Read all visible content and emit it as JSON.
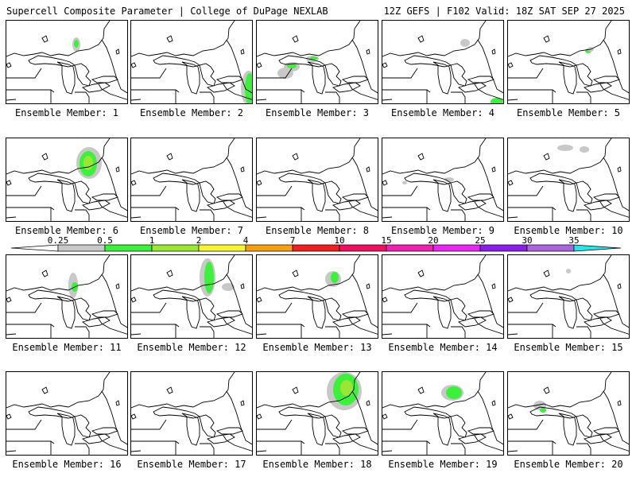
{
  "header": {
    "left": "Supercell Composite Parameter | College of DuPage NEXLAB",
    "right": "12Z GEFS | F102 Valid: 18Z SAT SEP 27 2025"
  },
  "colorbar": {
    "bins": [
      {
        "label": "0.25",
        "color": "#c8c8c8"
      },
      {
        "label": "0.5",
        "color": "#3cf03c"
      },
      {
        "label": "1",
        "color": "#9ae632"
      },
      {
        "label": "2",
        "color": "#f5f532"
      },
      {
        "label": "4",
        "color": "#f5a014"
      },
      {
        "label": "7",
        "color": "#ee2020"
      },
      {
        "label": "10",
        "color": "#ee1060"
      },
      {
        "label": "15",
        "color": "#f020b0"
      },
      {
        "label": "20",
        "color": "#e628f0"
      },
      {
        "label": "25",
        "color": "#8a1ee6"
      },
      {
        "label": "30",
        "color": "#aa64dc"
      },
      {
        "label": "35",
        "color": "#28e6e6"
      }
    ]
  },
  "members": [
    {
      "label": "Ensemble Member: 1"
    },
    {
      "label": "Ensemble Member: 2"
    },
    {
      "label": "Ensemble Member: 3"
    },
    {
      "label": "Ensemble Member: 4"
    },
    {
      "label": "Ensemble Member: 5"
    },
    {
      "label": "Ensemble Member: 6"
    },
    {
      "label": "Ensemble Member: 7"
    },
    {
      "label": "Ensemble Member: 8"
    },
    {
      "label": "Ensemble Member: 9"
    },
    {
      "label": "Ensemble Member: 10"
    },
    {
      "label": "Ensemble Member: 11"
    },
    {
      "label": "Ensemble Member: 12"
    },
    {
      "label": "Ensemble Member: 13"
    },
    {
      "label": "Ensemble Member: 14"
    },
    {
      "label": "Ensemble Member: 15"
    },
    {
      "label": "Ensemble Member: 16"
    },
    {
      "label": "Ensemble Member: 17"
    },
    {
      "label": "Ensemble Member: 18"
    },
    {
      "label": "Ensemble Member: 19"
    },
    {
      "label": "Ensemble Member: 20"
    }
  ]
}
